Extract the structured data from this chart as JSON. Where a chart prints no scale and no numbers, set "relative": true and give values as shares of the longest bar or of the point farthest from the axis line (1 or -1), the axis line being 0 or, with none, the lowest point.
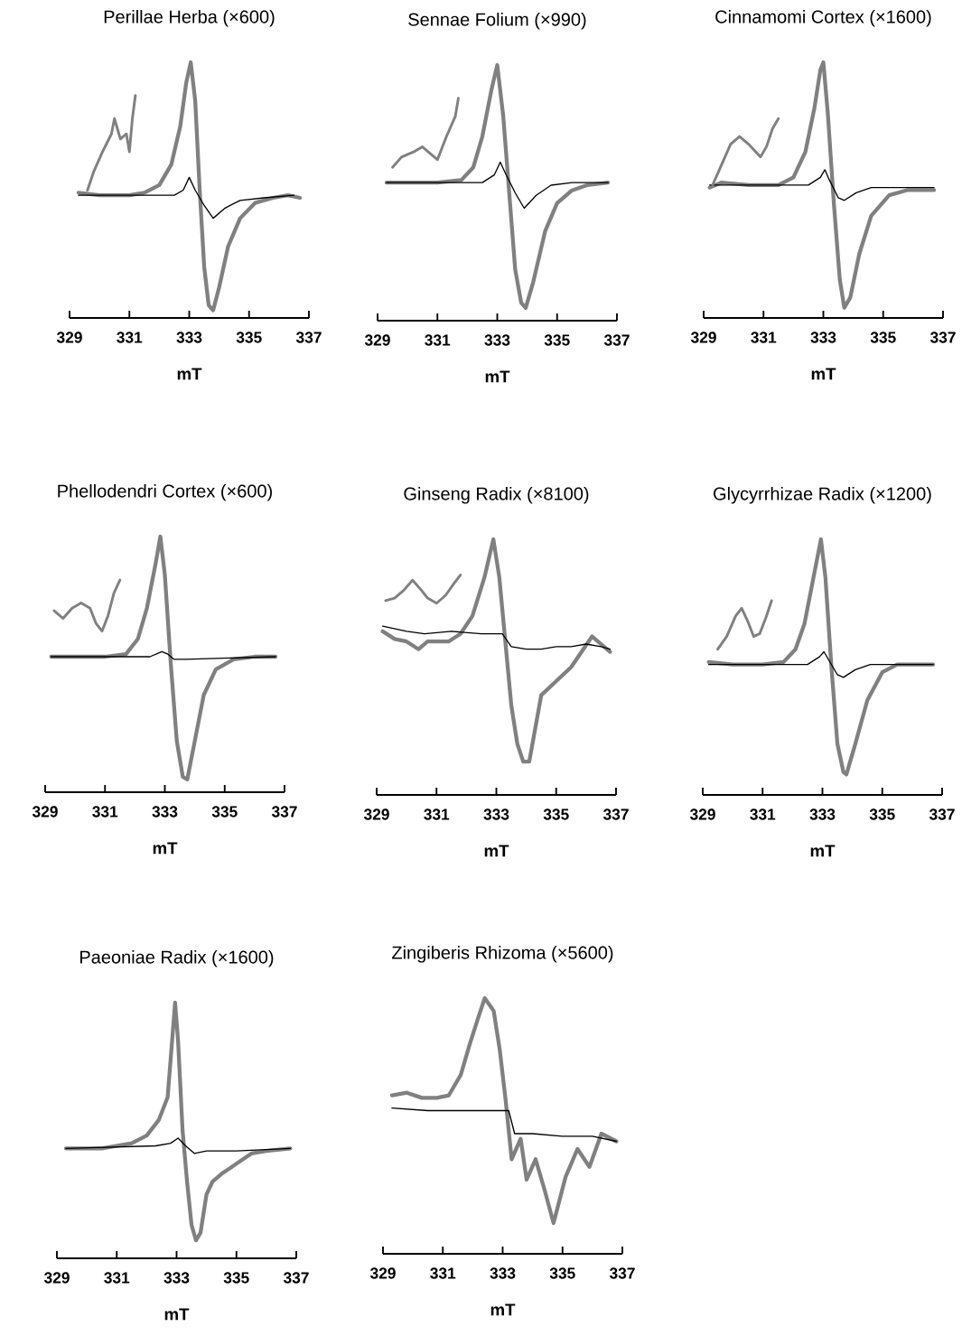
{
  "chart_data": [
    {
      "type": "line",
      "title": "Perillae Herba (×600)",
      "xlabel": "mT",
      "relative": true,
      "xlim": [
        329,
        337
      ],
      "xticks": [
        329,
        331,
        333,
        335,
        337
      ],
      "series": [
        {
          "color": "#808080",
          "x": [
            329.3,
            330,
            331,
            331.5,
            332,
            332.4,
            332.7,
            332.9,
            333.05,
            333.2,
            333.35,
            333.5,
            333.65,
            333.8,
            334.0,
            334.3,
            334.7,
            335.2,
            335.8,
            336.3,
            336.7
          ],
          "values": [
            0.49,
            0.48,
            0.48,
            0.49,
            0.52,
            0.6,
            0.75,
            0.92,
            1.0,
            0.85,
            0.5,
            0.2,
            0.05,
            0.03,
            0.12,
            0.28,
            0.39,
            0.45,
            0.47,
            0.48,
            0.47
          ]
        },
        {
          "color": "#000000",
          "x": [
            329.3,
            332.5,
            332.8,
            333.0,
            333.2,
            333.5,
            333.8,
            334.2,
            334.7,
            335.5,
            336.5
          ],
          "values": [
            0.48,
            0.48,
            0.5,
            0.55,
            0.5,
            0.44,
            0.39,
            0.43,
            0.46,
            0.47,
            0.48
          ]
        },
        {
          "color": "#808080",
          "x": [
            329.6,
            329.8,
            330.1,
            330.4,
            330.5,
            330.7,
            330.9,
            331.0,
            331.1,
            331.2
          ],
          "values": [
            0.5,
            0.57,
            0.65,
            0.72,
            0.78,
            0.7,
            0.72,
            0.65,
            0.78,
            0.87
          ]
        }
      ]
    },
    {
      "type": "line",
      "title": "Sennae Folium (×990)",
      "xlabel": "mT",
      "relative": true,
      "xlim": [
        329,
        337
      ],
      "xticks": [
        329,
        331,
        333,
        335,
        337
      ],
      "series": [
        {
          "color": "#808080",
          "x": [
            329.3,
            331,
            331.8,
            332.2,
            332.5,
            332.8,
            333.0,
            333.2,
            333.4,
            333.6,
            333.8,
            333.95,
            334.2,
            334.6,
            335.0,
            335.5,
            336.0,
            336.7
          ],
          "values": [
            0.54,
            0.54,
            0.55,
            0.6,
            0.72,
            0.9,
            1.0,
            0.8,
            0.5,
            0.2,
            0.07,
            0.05,
            0.15,
            0.35,
            0.46,
            0.51,
            0.53,
            0.54
          ]
        },
        {
          "color": "#000000",
          "x": [
            329.3,
            332.5,
            332.9,
            333.1,
            333.3,
            333.6,
            333.9,
            334.3,
            334.8,
            335.5,
            336.7
          ],
          "values": [
            0.54,
            0.54,
            0.57,
            0.62,
            0.57,
            0.5,
            0.44,
            0.49,
            0.53,
            0.54,
            0.54
          ]
        },
        {
          "color": "#808080",
          "x": [
            329.5,
            329.8,
            330.2,
            330.5,
            330.8,
            331.0,
            331.3,
            331.6,
            331.7
          ],
          "values": [
            0.6,
            0.64,
            0.66,
            0.68,
            0.65,
            0.63,
            0.72,
            0.8,
            0.87
          ]
        }
      ]
    },
    {
      "type": "line",
      "title": "Cinnamomi Cortex (×1600)",
      "xlabel": "mT",
      "relative": true,
      "xlim": [
        329,
        337
      ],
      "xticks": [
        329,
        331,
        333,
        335,
        337
      ],
      "series": [
        {
          "color": "#808080",
          "x": [
            329.2,
            329.6,
            330.5,
            331.5,
            332.0,
            332.4,
            332.7,
            332.9,
            333.0,
            333.15,
            333.35,
            333.55,
            333.7,
            333.9,
            334.2,
            334.6,
            335.2,
            335.8,
            336.7
          ],
          "values": [
            0.51,
            0.53,
            0.52,
            0.52,
            0.55,
            0.65,
            0.82,
            0.97,
            1.0,
            0.8,
            0.45,
            0.15,
            0.04,
            0.08,
            0.25,
            0.4,
            0.48,
            0.5,
            0.5
          ]
        },
        {
          "color": "#000000",
          "x": [
            329.2,
            332.5,
            332.9,
            333.05,
            333.2,
            333.5,
            333.7,
            334.1,
            334.6,
            336.7
          ],
          "values": [
            0.52,
            0.52,
            0.55,
            0.58,
            0.54,
            0.47,
            0.46,
            0.49,
            0.51,
            0.51
          ]
        },
        {
          "color": "#808080",
          "x": [
            329.3,
            329.6,
            329.9,
            330.2,
            330.5,
            330.9,
            331.1,
            331.3,
            331.5
          ],
          "values": [
            0.52,
            0.6,
            0.68,
            0.71,
            0.68,
            0.63,
            0.67,
            0.74,
            0.78
          ]
        }
      ]
    },
    {
      "type": "line",
      "title": "Phellodendri Cortex (×600)",
      "xlabel": "mT",
      "relative": true,
      "xlim": [
        329,
        337
      ],
      "xticks": [
        329,
        331,
        333,
        335,
        337
      ],
      "series": [
        {
          "color": "#808080",
          "x": [
            329.2,
            330,
            331,
            331.7,
            332.1,
            332.4,
            332.7,
            332.85,
            333.0,
            333.2,
            333.4,
            333.6,
            333.75,
            334.0,
            334.3,
            334.7,
            335.3,
            336.0,
            336.7
          ],
          "values": [
            0.53,
            0.53,
            0.53,
            0.54,
            0.6,
            0.72,
            0.9,
            1.0,
            0.85,
            0.5,
            0.2,
            0.06,
            0.05,
            0.2,
            0.38,
            0.48,
            0.52,
            0.53,
            0.53
          ]
        },
        {
          "color": "#000000",
          "x": [
            329.2,
            332.5,
            332.9,
            333.1,
            333.3,
            333.7,
            336.7
          ],
          "values": [
            0.53,
            0.53,
            0.55,
            0.54,
            0.52,
            0.52,
            0.53
          ]
        },
        {
          "color": "#808080",
          "x": [
            329.3,
            329.6,
            329.9,
            330.2,
            330.5,
            330.7,
            330.9,
            331.1,
            331.3,
            331.5
          ],
          "values": [
            0.71,
            0.68,
            0.72,
            0.74,
            0.72,
            0.66,
            0.63,
            0.69,
            0.78,
            0.83
          ]
        }
      ]
    },
    {
      "type": "line",
      "title": "Ginseng Radix (×8100)",
      "xlabel": "mT",
      "relative": true,
      "xlim": [
        329,
        337
      ],
      "xticks": [
        329,
        331,
        333,
        335,
        337
      ],
      "series": [
        {
          "color": "#808080",
          "x": [
            329.2,
            329.6,
            330.0,
            330.4,
            330.7,
            331.0,
            331.4,
            331.8,
            332.2,
            332.6,
            332.9,
            333.1,
            333.3,
            333.5,
            333.7,
            333.9,
            334.1,
            334.5,
            335.5,
            336.2,
            336.8
          ],
          "values": [
            0.64,
            0.61,
            0.6,
            0.57,
            0.6,
            0.6,
            0.6,
            0.63,
            0.7,
            0.85,
            1.0,
            0.85,
            0.6,
            0.35,
            0.2,
            0.13,
            0.13,
            0.39,
            0.5,
            0.62,
            0.56
          ]
        },
        {
          "color": "#000000",
          "x": [
            329.2,
            330,
            330.6,
            331.5,
            332.5,
            333.2,
            333.5,
            334,
            334.5,
            335,
            335.5,
            336,
            336.5,
            336.8
          ],
          "values": [
            0.66,
            0.64,
            0.63,
            0.64,
            0.63,
            0.63,
            0.58,
            0.57,
            0.57,
            0.58,
            0.58,
            0.59,
            0.58,
            0.57
          ]
        },
        {
          "color": "#808080",
          "x": [
            329.3,
            329.6,
            329.9,
            330.2,
            330.5,
            330.7,
            331.0,
            331.3,
            331.6,
            331.8
          ],
          "values": [
            0.76,
            0.77,
            0.8,
            0.84,
            0.8,
            0.77,
            0.75,
            0.78,
            0.83,
            0.86
          ]
        }
      ]
    },
    {
      "type": "line",
      "title": "Glycyrrhizae Radix (×1200)",
      "xlabel": "mT",
      "relative": true,
      "xlim": [
        329,
        337
      ],
      "xticks": [
        329,
        331,
        333,
        335,
        337
      ],
      "series": [
        {
          "color": "#808080",
          "x": [
            329.2,
            330,
            331,
            331.7,
            332.1,
            332.4,
            332.7,
            332.95,
            333.1,
            333.3,
            333.5,
            333.7,
            333.8,
            334.1,
            334.5,
            335.0,
            335.5,
            336.7
          ],
          "values": [
            0.52,
            0.51,
            0.51,
            0.52,
            0.57,
            0.67,
            0.85,
            1.0,
            0.85,
            0.5,
            0.2,
            0.09,
            0.08,
            0.2,
            0.37,
            0.48,
            0.51,
            0.51
          ]
        },
        {
          "color": "#000000",
          "x": [
            329.2,
            332.5,
            332.9,
            333.05,
            333.2,
            333.5,
            333.7,
            334.1,
            334.6,
            336.7
          ],
          "values": [
            0.51,
            0.51,
            0.54,
            0.56,
            0.53,
            0.47,
            0.46,
            0.49,
            0.51,
            0.51
          ]
        },
        {
          "color": "#808080",
          "x": [
            329.5,
            329.8,
            330.1,
            330.3,
            330.5,
            330.7,
            330.9,
            331.1,
            331.3
          ],
          "values": [
            0.57,
            0.62,
            0.7,
            0.73,
            0.68,
            0.62,
            0.63,
            0.69,
            0.76
          ]
        }
      ]
    },
    {
      "type": "line",
      "title": "Paeoniae Radix (×1600)",
      "xlabel": "mT",
      "relative": true,
      "xlim": [
        329,
        337
      ],
      "xticks": [
        329,
        331,
        333,
        335,
        337
      ],
      "series": [
        {
          "color": "#808080",
          "x": [
            329.3,
            330.5,
            331.5,
            332.0,
            332.4,
            332.7,
            332.85,
            332.95,
            333.05,
            333.2,
            333.35,
            333.5,
            333.65,
            333.8,
            334.0,
            334.2,
            334.5,
            335,
            335.5,
            336,
            336.8
          ],
          "values": [
            0.43,
            0.43,
            0.45,
            0.48,
            0.54,
            0.63,
            0.85,
            1.0,
            0.85,
            0.5,
            0.3,
            0.13,
            0.07,
            0.1,
            0.25,
            0.3,
            0.33,
            0.37,
            0.41,
            0.42,
            0.43
          ]
        },
        {
          "color": "#000000",
          "x": [
            329.3,
            332.3,
            332.8,
            333.05,
            333.3,
            333.6,
            334,
            335,
            336.8
          ],
          "values": [
            0.43,
            0.44,
            0.45,
            0.47,
            0.44,
            0.41,
            0.42,
            0.42,
            0.43
          ]
        }
      ]
    },
    {
      "type": "line",
      "title": "Zingiberis Rhizoma (×5600)",
      "xlabel": "mT",
      "relative": true,
      "xlim": [
        329,
        337
      ],
      "xticks": [
        329,
        331,
        333,
        335,
        337
      ],
      "series": [
        {
          "color": "#808080",
          "x": [
            329.3,
            329.8,
            330.3,
            330.8,
            331.2,
            331.6,
            331.9,
            332.2,
            332.4,
            332.7,
            332.9,
            333.1,
            333.3,
            333.6,
            333.8,
            334.1,
            334.4,
            334.7,
            335.1,
            335.5,
            335.9,
            336.3,
            336.8
          ],
          "values": [
            0.62,
            0.63,
            0.61,
            0.61,
            0.62,
            0.7,
            0.82,
            0.93,
            1.0,
            0.95,
            0.8,
            0.6,
            0.37,
            0.45,
            0.29,
            0.37,
            0.25,
            0.12,
            0.3,
            0.41,
            0.34,
            0.47,
            0.44
          ]
        },
        {
          "color": "#000000",
          "x": [
            329.3,
            330.5,
            331.5,
            332.5,
            333.2,
            333.4,
            334,
            335,
            336,
            336.8
          ],
          "values": [
            0.57,
            0.56,
            0.56,
            0.56,
            0.56,
            0.47,
            0.47,
            0.46,
            0.46,
            0.44
          ]
        }
      ]
    }
  ]
}
